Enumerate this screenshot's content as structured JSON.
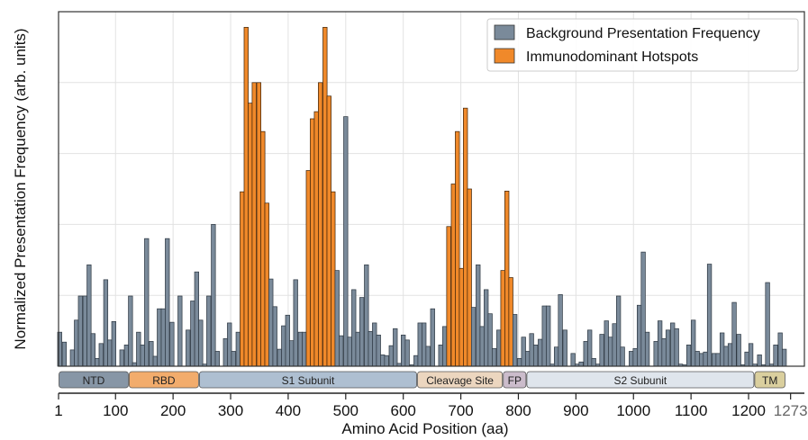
{
  "chart_data": {
    "type": "bar",
    "title": "",
    "xlabel": "Amino Acid Position (aa)",
    "ylabel": "Normalized Presentation Frequency (arb. units)",
    "xlim": [
      1,
      1297
    ],
    "ylim": [
      0,
      5
    ],
    "grid": true,
    "x_ticks": [
      1,
      100,
      200,
      300,
      400,
      500,
      600,
      700,
      800,
      900,
      1000,
      1100,
      1200,
      1273
    ],
    "y_ticks_shown": false,
    "legend": {
      "placement": "top-right",
      "entries": [
        {
          "label": "Background Presentation Frequency",
          "color": "#7a8a9a"
        },
        {
          "label": "Immunodominant Hotspots",
          "color": "#f0892a"
        }
      ]
    },
    "series": [
      {
        "name": "Background Presentation Frequency",
        "color": "#7a8a9a"
      },
      {
        "name": "Immunodominant Hotspots",
        "color": "#f0892a"
      }
    ],
    "x": [
      3,
      11,
      18,
      25,
      32,
      39,
      47,
      54,
      61,
      68,
      75,
      83,
      90,
      97,
      104,
      111,
      119,
      126,
      133,
      140,
      147,
      154,
      162,
      169,
      176,
      183,
      190,
      198,
      205,
      212,
      219,
      226,
      234,
      241,
      248,
      255,
      262,
      270,
      277,
      284,
      291,
      298,
      305,
      313,
      320,
      327,
      334,
      341,
      349,
      356,
      363,
      370,
      377,
      385,
      392,
      399,
      406,
      413,
      421,
      428,
      435,
      442,
      449,
      456,
      464,
      471,
      478,
      485,
      492,
      500,
      507,
      514,
      521,
      528,
      536,
      543,
      550,
      557,
      564,
      571,
      579,
      586,
      593,
      600,
      607,
      615,
      622,
      629,
      636,
      643,
      651,
      658,
      665,
      672,
      679,
      687,
      694,
      701,
      708,
      715,
      722,
      730,
      737,
      744,
      751,
      758,
      766,
      773,
      780,
      787,
      794,
      802,
      809,
      816,
      823,
      830,
      838,
      845,
      852,
      859,
      866,
      873,
      881,
      888,
      895,
      902,
      909,
      917,
      924,
      931,
      938,
      945,
      953,
      960,
      967,
      974,
      981,
      989,
      996,
      1003,
      1010,
      1017,
      1024,
      1032,
      1039,
      1046,
      1053,
      1060,
      1068,
      1075,
      1082,
      1089,
      1096,
      1104,
      1111,
      1118,
      1125,
      1132,
      1140,
      1147,
      1154,
      1161,
      1168,
      1175,
      1183,
      1190,
      1197,
      1204,
      1211,
      1219,
      1226,
      1233,
      1240,
      1247,
      1255,
      1262
    ],
    "values": [
      0.48,
      0.34,
      0,
      0.23,
      0.65,
      0.99,
      0.99,
      1.43,
      0.46,
      0.11,
      0.32,
      1.22,
      0.37,
      0.63,
      0,
      0.23,
      0.3,
      0.99,
      0.05,
      0.48,
      0.3,
      1.8,
      0.35,
      0.14,
      0.81,
      0.81,
      1.8,
      0.62,
      0,
      0.99,
      0,
      0.51,
      0.92,
      1.33,
      0.65,
      0.03,
      0.99,
      2.0,
      0.21,
      0,
      0.39,
      0.61,
      0.21,
      0.48,
      2.46,
      4.78,
      3.71,
      4.0,
      4.0,
      3.31,
      2.3,
      1.23,
      0.84,
      0.24,
      0.57,
      0.72,
      0.36,
      1.22,
      0.48,
      0.48,
      2.76,
      3.49,
      3.59,
      4.0,
      4.78,
      3.81,
      2.46,
      1.35,
      0.43,
      3.52,
      0.41,
      1.08,
      0.48,
      0.97,
      1.43,
      0.49,
      0.61,
      0.44,
      0.16,
      0.15,
      0.29,
      0.53,
      0.04,
      0.44,
      0.37,
      0.02,
      0.15,
      0.61,
      0.61,
      0.28,
      0.81,
      0,
      0.3,
      0.56,
      1.97,
      2.57,
      3.31,
      1.38,
      3.64,
      2.5,
      0.83,
      1.43,
      0.56,
      1.08,
      0.74,
      0.25,
      0.51,
      1.35,
      2.47,
      1.25,
      0.73,
      0.11,
      0.41,
      0.21,
      0.46,
      0.3,
      0.38,
      0.85,
      0.85,
      0.03,
      0.27,
      1.01,
      0.51,
      0,
      0.18,
      0.03,
      0.06,
      0.35,
      0.51,
      0.11,
      0.03,
      0.45,
      0.64,
      0.41,
      0.6,
      0.99,
      0.27,
      0,
      0.21,
      0.25,
      0.86,
      1.61,
      0.48,
      0,
      0.35,
      0.64,
      0.39,
      0.51,
      0.61,
      0.53,
      0.03,
      0.02,
      0.3,
      0.65,
      0.21,
      0.18,
      0.2,
      1.44,
      0.18,
      0.18,
      0.47,
      0.28,
      0.32,
      0.9,
      0.45,
      0.02,
      0.2,
      0.32,
      0.03,
      0.16,
      0.02,
      1.18,
      0.03,
      0.3,
      0.47,
      0.24
    ],
    "hotspot": [
      0,
      0,
      0,
      0,
      0,
      0,
      0,
      0,
      0,
      0,
      0,
      0,
      0,
      0,
      0,
      0,
      0,
      0,
      0,
      0,
      0,
      0,
      0,
      0,
      0,
      0,
      0,
      0,
      0,
      0,
      0,
      0,
      0,
      0,
      0,
      0,
      0,
      0,
      0,
      0,
      0,
      0,
      0,
      0,
      1,
      1,
      1,
      1,
      1,
      1,
      1,
      0,
      0,
      0,
      0,
      0,
      0,
      0,
      0,
      0,
      1,
      1,
      1,
      1,
      1,
      1,
      1,
      0,
      0,
      0,
      0,
      0,
      0,
      0,
      0,
      0,
      0,
      0,
      0,
      0,
      0,
      0,
      0,
      0,
      0,
      0,
      0,
      0,
      0,
      0,
      0,
      0,
      0,
      0,
      1,
      1,
      1,
      1,
      1,
      1,
      0,
      0,
      0,
      0,
      0,
      0,
      0,
      1,
      1,
      1,
      0,
      0,
      0,
      0,
      0,
      0,
      0,
      0,
      0,
      0,
      0,
      0,
      0,
      0,
      0,
      0,
      0,
      0,
      0,
      0,
      0,
      0,
      0,
      0,
      0,
      0,
      0,
      0,
      0,
      0,
      0,
      0,
      0,
      0,
      0,
      0,
      0,
      0,
      0,
      0,
      0,
      0,
      0,
      0,
      0,
      0,
      0,
      0,
      0,
      0,
      0,
      0,
      0,
      0,
      0,
      0,
      0,
      0,
      0,
      0,
      0,
      0,
      0,
      0,
      0,
      0
    ],
    "domains": [
      {
        "label": "NTD",
        "start": 1,
        "end": 123,
        "color": "#8796a6"
      },
      {
        "label": "RBD",
        "start": 123,
        "end": 245,
        "color": "#f2ac6c"
      },
      {
        "label": "S1 Subunit",
        "start": 245,
        "end": 624,
        "color": "#aebfd1"
      },
      {
        "label": "Cleavage Site",
        "start": 624,
        "end": 773,
        "color": "#ecd6bf"
      },
      {
        "label": "FP",
        "start": 773,
        "end": 814,
        "color": "#cbbccb"
      },
      {
        "label": "S2 Subunit",
        "start": 814,
        "end": 1210,
        "color": "#dfe5ec"
      },
      {
        "label": "TM",
        "start": 1210,
        "end": 1264,
        "color": "#dacf9e"
      }
    ]
  }
}
